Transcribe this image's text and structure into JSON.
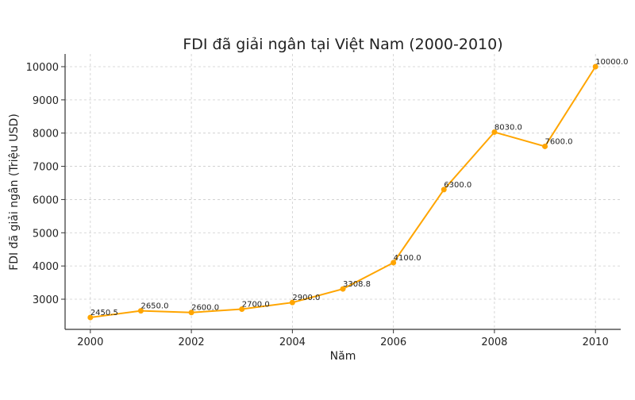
{
  "chart_data": {
    "type": "line",
    "title": "FDI đã giải ngân tại Việt Nam (2000-2010)",
    "xlabel": "Năm",
    "ylabel": "FDI đã giải ngân (Triệu USD)",
    "x": [
      2000,
      2001,
      2002,
      2003,
      2004,
      2005,
      2006,
      2007,
      2008,
      2009,
      2010
    ],
    "values": [
      2450.5,
      2650.0,
      2600.0,
      2700.0,
      2900.0,
      3308.8,
      4100.0,
      6300.0,
      8030.0,
      7600.0,
      10000.0
    ],
    "data_labels": [
      "2450.5",
      "2650.0",
      "2600.0",
      "2700.0",
      "2900.0",
      "3308.8",
      "4100.0",
      "6300.0",
      "8030.0",
      "7600.0",
      "10000.0"
    ],
    "xticks": [
      "2000",
      "2002",
      "2004",
      "2006",
      "2008",
      "2010"
    ],
    "yticks": [
      "3000",
      "4000",
      "5000",
      "6000",
      "7000",
      "8000",
      "9000",
      "10000"
    ],
    "xlim": [
      1999.5,
      2010.5
    ],
    "ylim": [
      2092,
      10382
    ],
    "grid": true,
    "marker": "circle",
    "color": "#FFA500"
  }
}
